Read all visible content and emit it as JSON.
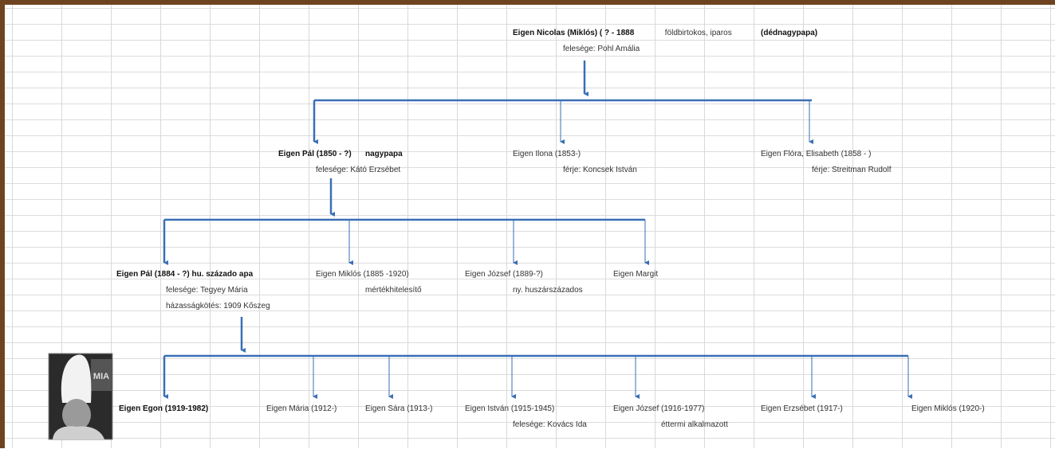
{
  "nodes": [
    {
      "lines": [
        [
          "Eigen Nicolas (Miklós) ( ? - 1888",
          " földbirtokos, iparos",
          "(dédnagypapa)"
        ],
        [
          "felesége: Pohl Amália"
        ]
      ]
    },
    {
      "lines": [
        [
          "Eigen Pál (1850 - ?)",
          "nagypapa"
        ],
        [
          "felesége: Kátó Erzsébet"
        ]
      ]
    },
    {
      "lines": [
        [
          "Eigen Ilona (1853-)"
        ],
        [
          "férje: Koncsek István"
        ]
      ]
    },
    {
      "lines": [
        [
          "Eigen Flóra, Elisabeth (1858 - )"
        ],
        [
          "férje: Streitman Rudolf"
        ]
      ]
    },
    {
      "lines": [
        [
          "Eigen Pál (1884 - ?) hu. százado apa"
        ],
        [
          "felesége: Tegyey Mária"
        ],
        [
          "házasságkötés: 1909 Kőszeg"
        ]
      ]
    },
    {
      "lines": [
        [
          "Eigen Miklós (1885 -1920)"
        ],
        [
          "mértékhitelesítő"
        ]
      ]
    },
    {
      "lines": [
        [
          "Eigen József (1889-?)"
        ],
        [
          "ny. huszárszázados"
        ]
      ]
    },
    {
      "lines": [
        [
          "Eigen Margit"
        ]
      ]
    },
    {
      "lines": [
        [
          "Eigen Egon (1919-1982)"
        ]
      ]
    },
    {
      "lines": [
        [
          "Eigen Mária (1912-)"
        ]
      ]
    },
    {
      "lines": [
        [
          "Eigen Sára (1913-)"
        ]
      ]
    },
    {
      "lines": [
        [
          "Eigen István (1915-1945)"
        ],
        [
          "felesége: Kovács Ida"
        ]
      ]
    },
    {
      "lines": [
        [
          "Eigen József (1916-1977)"
        ],
        [
          "éttermi alkalmazott"
        ]
      ]
    },
    {
      "lines": [
        [
          "Eigen Erzsébet (1917-)"
        ]
      ]
    },
    {
      "lines": [
        [
          "Eigen Miklós (1920-)"
        ]
      ]
    }
  ],
  "photo_caption": "MIA"
}
